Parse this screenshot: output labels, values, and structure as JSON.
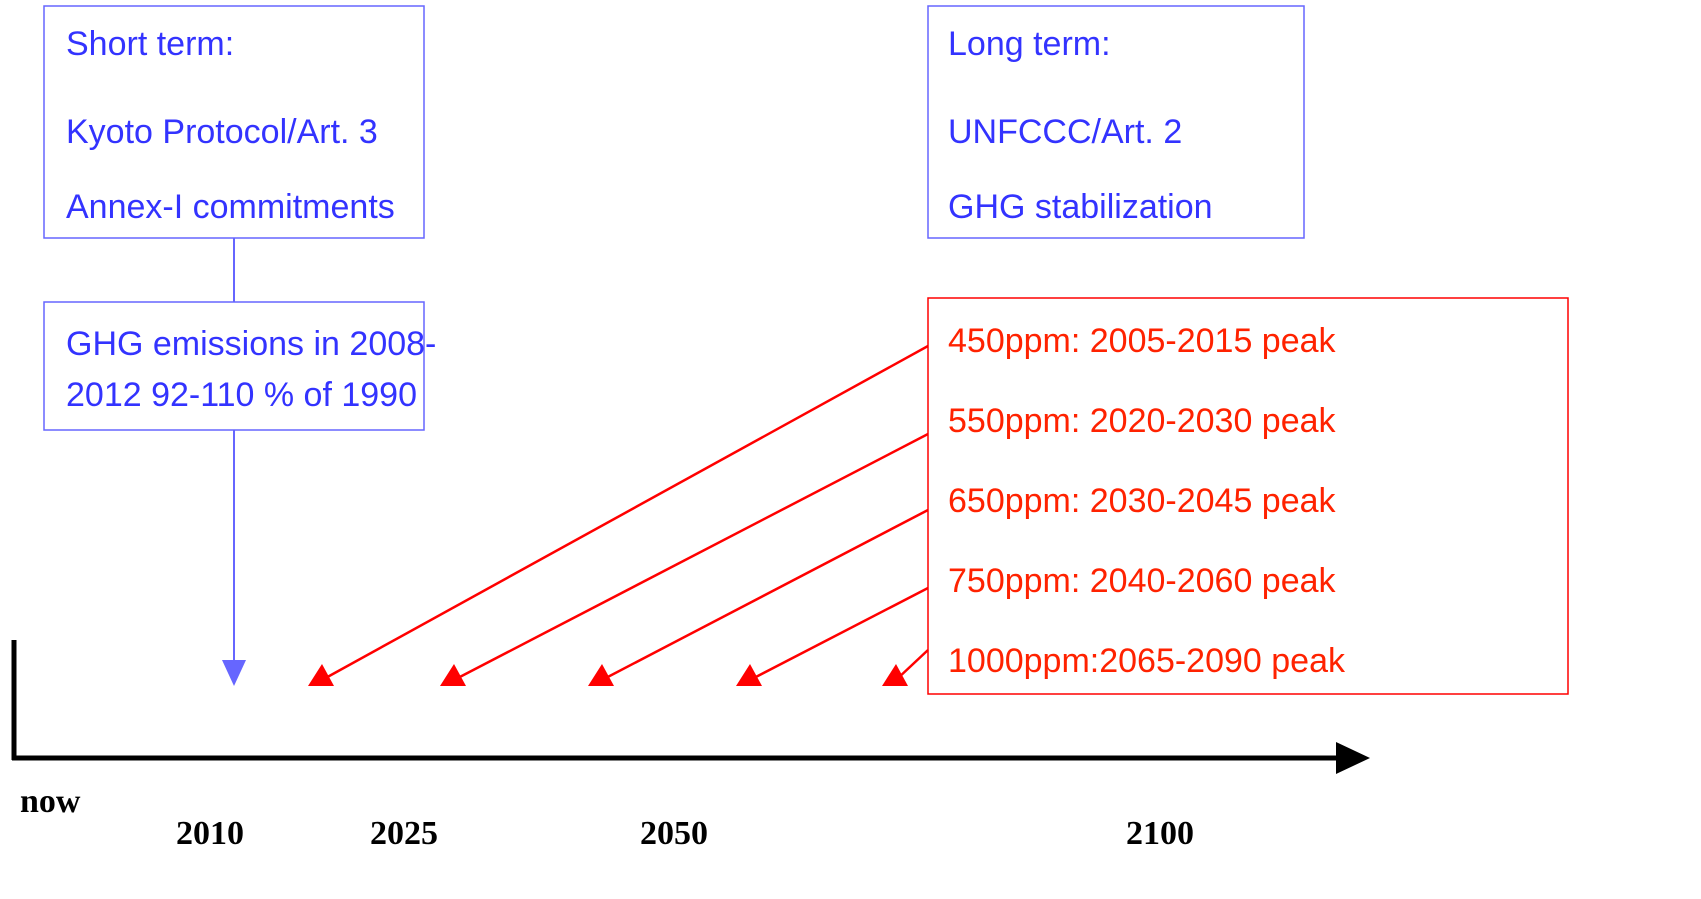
{
  "short_term": {
    "lines": [
      "Short term:",
      "Kyoto Protocol/Art. 3",
      "Annex-I commitments"
    ]
  },
  "kyoto_target": {
    "lines": [
      "GHG emissions in 2008-",
      "2012 92-110 % of 1990"
    ]
  },
  "long_term": {
    "lines": [
      "Long term:",
      "UNFCCC/Art. 2",
      "GHG stabilization"
    ]
  },
  "stabilization": {
    "lines": [
      "450ppm: 2005-2015 peak",
      "550ppm: 2020-2030 peak",
      "650ppm: 2030-2045 peak",
      "750ppm: 2040-2060 peak",
      "1000ppm:2065-2090 peak"
    ]
  },
  "timeline": {
    "labels": [
      "now",
      "2010",
      "2025",
      "2050",
      "2100"
    ]
  }
}
